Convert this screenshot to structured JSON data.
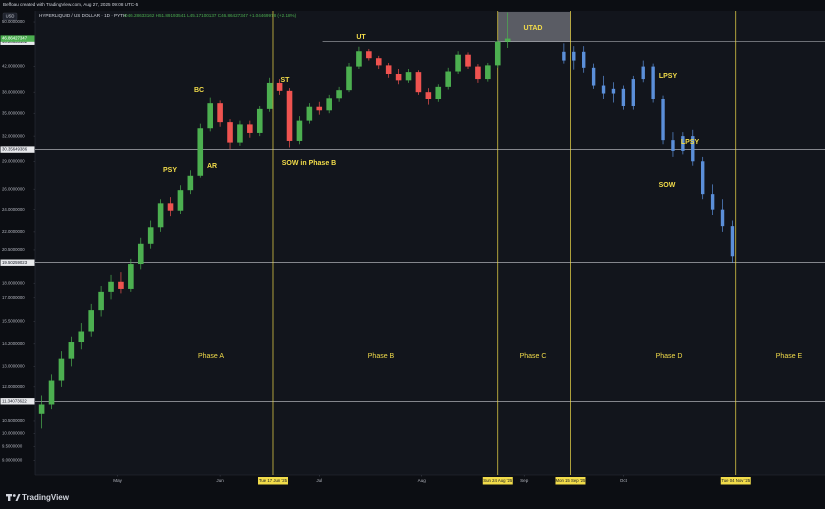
{
  "chart_data": {
    "type": "candlestick",
    "caption": "Beffoau created with TradingView.com, Aug 27, 2025 09:08 UTC-5",
    "symbol": "HYPERLIQUID / US DOLLAR · 1D · PYTH",
    "ohlc_text": "O46.28633162 H51.89193541 L45.17100137 C46.86427347 +1.04469978 (+2.18%)",
    "currency": "USD",
    "brand": "TradingView",
    "log_scale": true,
    "ylim": [
      8.5,
      52
    ],
    "yticks": [
      {
        "value": 50,
        "label": "50.0000000"
      },
      {
        "value": 46,
        "label": "46.0000000"
      },
      {
        "value": 42,
        "label": "42.0000000"
      },
      {
        "value": 38,
        "label": "38.0000000"
      },
      {
        "value": 35,
        "label": "35.0000000"
      },
      {
        "value": 32,
        "label": "32.0000000"
      },
      {
        "value": 29,
        "label": "29.0000000"
      },
      {
        "value": 26,
        "label": "26.0000000"
      },
      {
        "value": 24,
        "label": "24.0000000"
      },
      {
        "value": 22,
        "label": "22.0000000"
      },
      {
        "value": 20.5,
        "label": "20.5000000"
      },
      {
        "value": 18,
        "label": "18.0000000"
      },
      {
        "value": 17,
        "label": "17.0000000"
      },
      {
        "value": 15.5,
        "label": "15.5000000"
      },
      {
        "value": 14.2,
        "label": "14.2000000"
      },
      {
        "value": 13,
        "label": "13.0000000"
      },
      {
        "value": 12,
        "label": "12.0000000"
      },
      {
        "value": 10.5,
        "label": "10.5000000"
      },
      {
        "value": 10,
        "label": "10.0000000"
      },
      {
        "value": 9.5,
        "label": "9.5000000"
      },
      {
        "value": 9,
        "label": "9.0000000"
      }
    ],
    "xlim": [
      "2025-04-06",
      "2025-12-01"
    ],
    "xticks": [
      {
        "value": "2025-05-01",
        "label": "May"
      },
      {
        "value": "2025-06-01",
        "label": "Jun"
      },
      {
        "value": "2025-07-01",
        "label": "Jul"
      },
      {
        "value": "2025-08-01",
        "label": "Aug"
      },
      {
        "value": "2025-09-01",
        "label": "Sep"
      },
      {
        "value": "2025-10-01",
        "label": "Oct"
      }
    ],
    "up_color": "#4caf50",
    "down_color": "#ef5350",
    "x": [
      "2025-04-08",
      "2025-04-11",
      "2025-04-14",
      "2025-04-17",
      "2025-04-20",
      "2025-04-23",
      "2025-04-26",
      "2025-04-29",
      "2025-05-02",
      "2025-05-05",
      "2025-05-08",
      "2025-05-11",
      "2025-05-14",
      "2025-05-17",
      "2025-05-20",
      "2025-05-23",
      "2025-05-26",
      "2025-05-29",
      "2025-06-01",
      "2025-06-04",
      "2025-06-07",
      "2025-06-10",
      "2025-06-13",
      "2025-06-16",
      "2025-06-19",
      "2025-06-22",
      "2025-06-25",
      "2025-06-28",
      "2025-07-01",
      "2025-07-04",
      "2025-07-07",
      "2025-07-10",
      "2025-07-13",
      "2025-07-16",
      "2025-07-19",
      "2025-07-22",
      "2025-07-25",
      "2025-07-28",
      "2025-07-31",
      "2025-08-03",
      "2025-08-06",
      "2025-08-09",
      "2025-08-12",
      "2025-08-15",
      "2025-08-18",
      "2025-08-21",
      "2025-08-24",
      "2025-08-27"
    ],
    "open": [
      10.8,
      11.2,
      12.3,
      13.4,
      14.3,
      14.9,
      16.2,
      17.4,
      18.1,
      17.6,
      19.4,
      21.0,
      22.4,
      24.6,
      23.9,
      25.9,
      27.4,
      33.0,
      36.4,
      33.8,
      31.2,
      33.5,
      32.4,
      35.6,
      39.4,
      38.2,
      31.4,
      34.0,
      35.9,
      35.4,
      37.1,
      38.3,
      42.0,
      44.6,
      43.4,
      42.2,
      40.8,
      39.8,
      41.1,
      38.0,
      37.0,
      38.8,
      41.2,
      44.0,
      42.0,
      40.0,
      42.2,
      46.28633162
    ],
    "high": [
      11.6,
      12.6,
      13.8,
      14.6,
      15.4,
      16.6,
      17.8,
      18.6,
      18.8,
      19.8,
      21.5,
      23.0,
      25.0,
      25.2,
      26.4,
      28.0,
      33.6,
      37.2,
      36.8,
      34.2,
      34.0,
      34.0,
      36.0,
      40.2,
      40.0,
      38.6,
      34.6,
      36.4,
      36.6,
      37.6,
      38.8,
      42.6,
      45.4,
      45.0,
      43.8,
      42.6,
      41.6,
      41.6,
      41.4,
      38.6,
      39.2,
      41.8,
      44.6,
      44.4,
      42.4,
      42.6,
      46.6,
      51.89193541
    ],
    "low": [
      10.2,
      11.0,
      12.0,
      13.0,
      13.9,
      14.6,
      15.8,
      16.9,
      17.3,
      17.4,
      19.0,
      20.6,
      22.0,
      23.4,
      23.6,
      25.5,
      27.2,
      32.6,
      33.2,
      30.4,
      30.8,
      31.8,
      32.0,
      35.2,
      37.6,
      30.6,
      31.0,
      33.6,
      34.8,
      35.0,
      36.6,
      38.0,
      41.6,
      43.0,
      41.6,
      40.2,
      39.2,
      39.4,
      37.6,
      36.2,
      36.6,
      38.4,
      40.8,
      41.6,
      39.4,
      39.6,
      41.8,
      45.17100137
    ],
    "close": [
      11.2,
      12.3,
      13.4,
      14.3,
      14.9,
      16.2,
      17.4,
      18.1,
      17.6,
      19.4,
      21.0,
      22.4,
      24.6,
      23.9,
      25.9,
      27.4,
      33.0,
      36.4,
      33.8,
      31.2,
      33.5,
      32.4,
      35.6,
      39.4,
      38.2,
      31.4,
      34.0,
      35.9,
      35.4,
      37.1,
      38.3,
      42.0,
      44.6,
      43.4,
      42.2,
      40.8,
      39.8,
      41.1,
      38.0,
      37.0,
      38.8,
      41.2,
      44.0,
      42.0,
      40.0,
      42.2,
      46.29,
      46.86427347
    ],
    "projection": {
      "color": "#5b8fd9",
      "x": [
        "2025-09-13",
        "2025-09-16",
        "2025-09-19",
        "2025-09-22",
        "2025-09-25",
        "2025-09-28",
        "2025-10-01",
        "2025-10-04",
        "2025-10-07",
        "2025-10-10",
        "2025-10-13",
        "2025-10-16",
        "2025-10-19",
        "2025-10-22",
        "2025-10-25",
        "2025-10-28",
        "2025-10-31",
        "2025-11-03"
      ],
      "open": [
        44.5,
        43.0,
        44.5,
        41.8,
        39.0,
        37.8,
        38.5,
        36.0,
        40.0,
        42.0,
        37.0,
        31.5,
        30.2,
        32.0,
        29.0,
        25.5,
        24.0,
        22.5
      ],
      "high": [
        46.0,
        45.5,
        45.5,
        42.5,
        40.5,
        39.5,
        39.0,
        40.5,
        43.0,
        42.5,
        37.5,
        32.5,
        32.5,
        32.8,
        29.5,
        26.5,
        25.0,
        23.0
      ],
      "low": [
        42.5,
        41.5,
        41.0,
        38.5,
        37.0,
        36.5,
        35.5,
        35.5,
        39.5,
        36.5,
        31.0,
        29.5,
        29.8,
        28.5,
        25.0,
        23.5,
        22.0,
        19.5
      ],
      "close": [
        43.0,
        44.5,
        41.8,
        39.0,
        37.8,
        38.5,
        36.0,
        40.0,
        42.0,
        37.0,
        31.5,
        30.2,
        32.0,
        29.0,
        25.5,
        24.0,
        22.5,
        20.0
      ]
    },
    "hlines": [
      30.35649386,
      19.50259023,
      11.34073622
    ],
    "ut_line": {
      "value": 46.28633162,
      "start": "2025-07-02"
    },
    "vlines": [
      {
        "x": "2025-06-17",
        "label": "Tue 17 Jun '25"
      },
      {
        "x": "2025-08-24",
        "label": "Sun 24 Aug '25"
      },
      {
        "x": "2025-09-15",
        "label": "Mon 15 Sep '25"
      },
      {
        "x": "2025-11-04",
        "label": "Tue 04 Nov '25"
      }
    ],
    "annotations": [
      "UT",
      "UTAD",
      "BC",
      "PSY",
      "AR",
      "ST",
      "SOW in Phase B",
      "LPSY",
      "LPSY",
      "SOW"
    ],
    "phases": [
      "Phase A",
      "Phase B",
      "Phase C",
      "Phase D",
      "Phase E"
    ]
  }
}
